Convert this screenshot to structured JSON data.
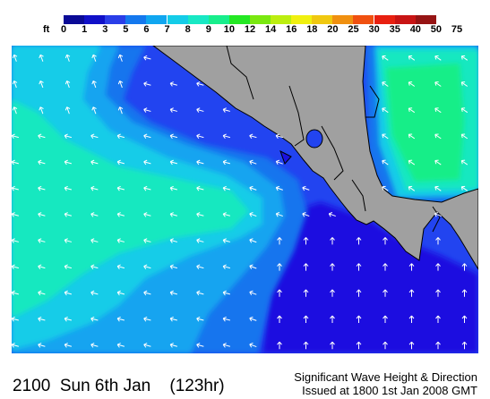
{
  "legend": {
    "unit": "ft",
    "ticks": [
      "0",
      "1",
      "3",
      "5",
      "6",
      "7",
      "8",
      "9",
      "10",
      "12",
      "14",
      "16",
      "18",
      "20",
      "25",
      "30",
      "35",
      "40",
      "50",
      "75"
    ],
    "colors": [
      "#0a0a96",
      "#1010c8",
      "#2a3ee8",
      "#1478ee",
      "#10a6f0",
      "#14cce8",
      "#18e8c4",
      "#18ee8c",
      "#24e824",
      "#7ae810",
      "#bcee10",
      "#f0f010",
      "#f0c810",
      "#f09010",
      "#f05010",
      "#e82010",
      "#c81414",
      "#961414"
    ]
  },
  "map": {
    "colors": {
      "land": "#a0a0a0",
      "coast": "#000000",
      "deep_blue": "#1a10e0",
      "blue": "#2244f0",
      "mid_blue": "#1474ee",
      "light_blue": "#14a4f0",
      "cyan": "#14cce8",
      "aqua": "#18e8c0",
      "green": "#18ee88",
      "arrow": "#ffffff"
    }
  },
  "footer": {
    "time": "2100  Sun 6th Jan",
    "hours": "(123hr)",
    "title": "Significant Wave Height & Direction",
    "issued": "Issued at 1800 1st Jan 2008 GMT"
  }
}
